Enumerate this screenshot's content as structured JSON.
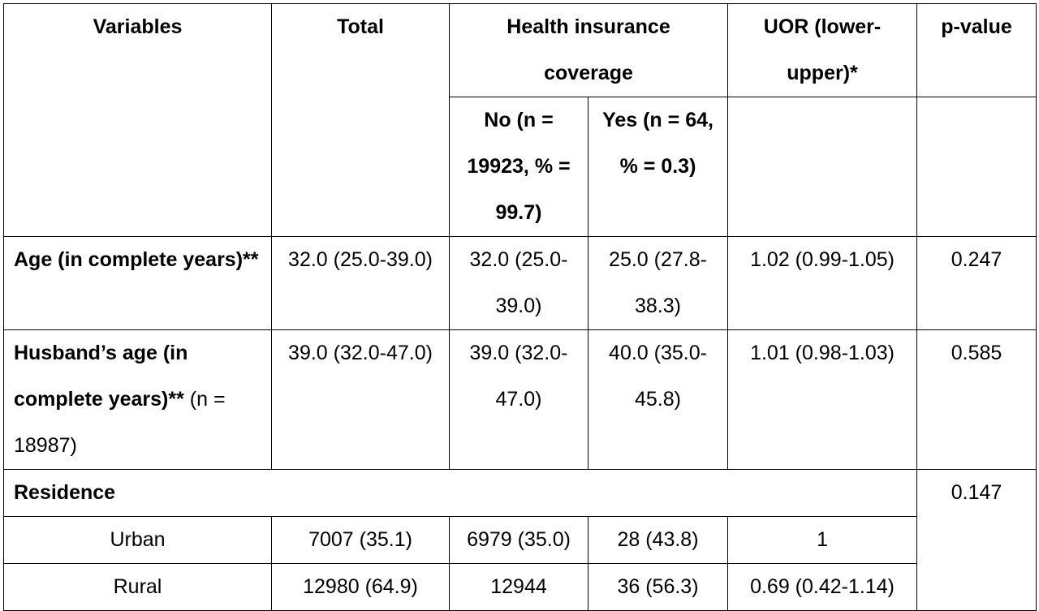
{
  "header": {
    "variables": "Variables",
    "total": "Total",
    "coverage": "Health insurance coverage",
    "uor": "UOR (lower-upper)*",
    "pvalue": "p-value",
    "no": "No (n = 19923, % = 99.7)",
    "yes": "Yes (n = 64, % = 0.3)"
  },
  "rows": {
    "age": {
      "label": "Age (in complete years)**",
      "total": "32.0 (25.0-39.0)",
      "no": "32.0 (25.0-39.0)",
      "yes": "25.0 (27.8-38.3)",
      "uor": "1.02 (0.99-1.05)",
      "p": "0.247"
    },
    "husband_age": {
      "label": "Husband’s age (in complete years)**",
      "note": " (n = 18987)",
      "total": "39.0 (32.0-47.0)",
      "no": "39.0 (32.0-47.0)",
      "yes": "40.0 (35.0-45.8)",
      "uor": "1.01 (0.98-1.03)",
      "p": "0.585"
    },
    "residence": {
      "label": "Residence",
      "p": "0.147"
    },
    "urban": {
      "label": "Urban",
      "total": "7007 (35.1)",
      "no": "6979 (35.0)",
      "yes": "28 (43.8)",
      "uor": "1"
    },
    "rural": {
      "label": "Rural",
      "total": "12980 (64.9)",
      "no": "12944",
      "yes": "36 (56.3)",
      "uor": "0.69 (0.42-1.14)"
    }
  }
}
